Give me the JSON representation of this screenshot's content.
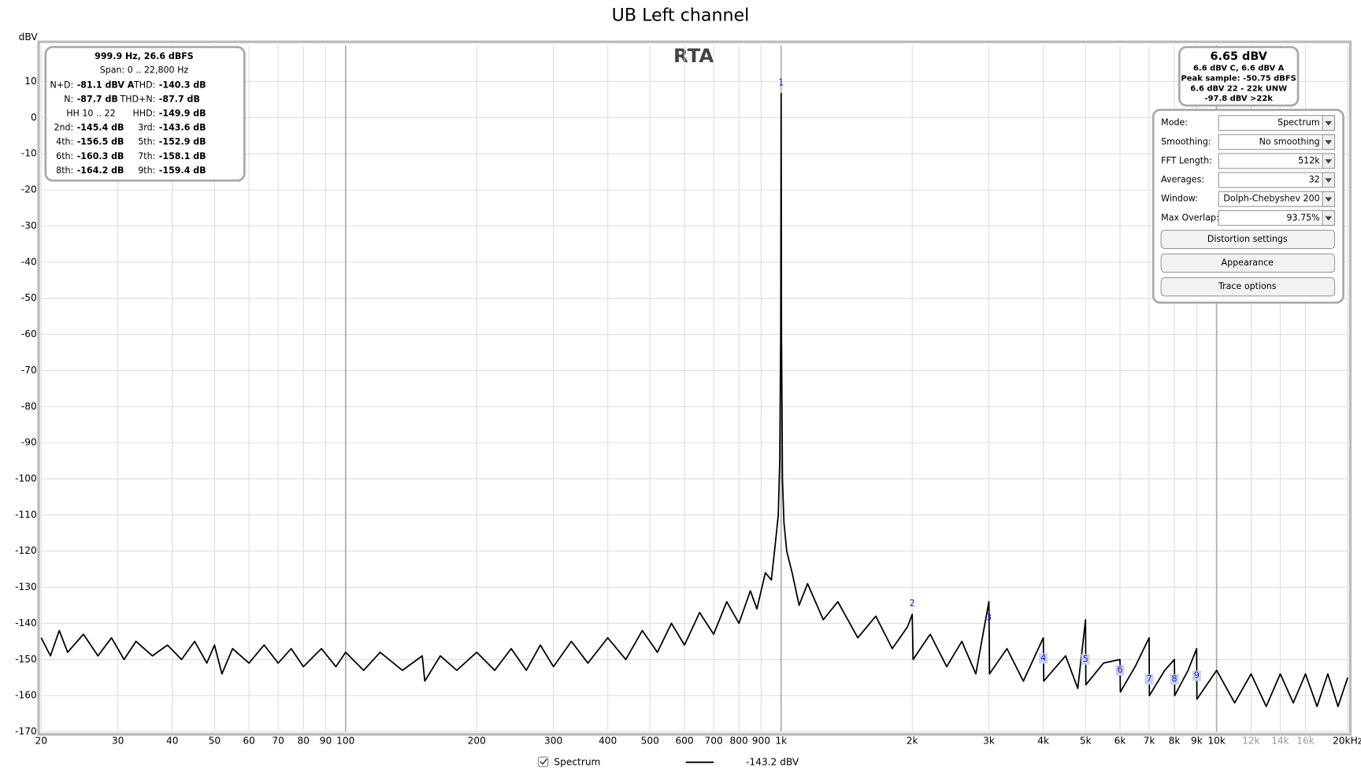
{
  "chart_data": {
    "type": "line",
    "title": "UB Left channel",
    "plot_label": "RTA",
    "y_unit": "dBV",
    "xscale": "log",
    "grid": true,
    "xlim": [
      20,
      20000
    ],
    "ylim": [
      -170,
      20
    ],
    "xticks": [
      20,
      30,
      40,
      50,
      60,
      70,
      80,
      90,
      100,
      200,
      300,
      400,
      500,
      600,
      700,
      800,
      900,
      {
        "value": 1000,
        "label": "1k"
      },
      {
        "value": 2000,
        "label": "2k"
      },
      {
        "value": 3000,
        "label": "3k"
      },
      {
        "value": 4000,
        "label": "4k"
      },
      {
        "value": 5000,
        "label": "5k"
      },
      {
        "value": 6000,
        "label": "6k"
      },
      {
        "value": 7000,
        "label": "7k"
      },
      {
        "value": 8000,
        "label": "8k"
      },
      {
        "value": 9000,
        "label": "9k"
      },
      {
        "value": 10000,
        "label": "10k"
      },
      {
        "value": 12000,
        "label": "12k",
        "color": "#999999"
      },
      {
        "value": 14000,
        "label": "14k",
        "color": "#999999"
      },
      {
        "value": 16000,
        "label": "16k",
        "color": "#999999"
      },
      {
        "value": 20000,
        "label": "20kHz"
      }
    ],
    "yticks": [
      -170,
      -160,
      -150,
      -140,
      -130,
      -120,
      -110,
      -100,
      -90,
      -80,
      -70,
      -60,
      -50,
      -40,
      -30,
      -20,
      -10,
      0,
      10
    ],
    "x": [
      20,
      21,
      22,
      23,
      25,
      27,
      29,
      31,
      33,
      36,
      39,
      42,
      45,
      48,
      50,
      52,
      55,
      60,
      65,
      70,
      75,
      80,
      88,
      95,
      100,
      110,
      120,
      135,
      150,
      152,
      165,
      180,
      200,
      220,
      240,
      260,
      280,
      300,
      330,
      360,
      400,
      440,
      480,
      520,
      560,
      600,
      650,
      700,
      750,
      800,
      850,
      880,
      920,
      950,
      970,
      985,
      993,
      998,
      1000,
      1002,
      1007,
      1015,
      1030,
      1060,
      1100,
      1150,
      1250,
      1350,
      1500,
      1650,
      1800,
      1950,
      2000,
      2010,
      2200,
      2400,
      2600,
      2800,
      3000,
      3010,
      3300,
      3600,
      4000,
      4010,
      4500,
      4800,
      5000,
      5010,
      5500,
      6000,
      6010,
      6500,
      7000,
      7010,
      7600,
      8000,
      8010,
      8600,
      9000,
      9010,
      10000,
      11000,
      12000,
      13000,
      14000,
      15000,
      16000,
      17000,
      18000,
      19000,
      20000
    ],
    "series": [
      {
        "name": "Spectrum",
        "color": "#000000",
        "legend_value": "-143.2 dBV",
        "values": [
          -144,
          -149,
          -142,
          -148,
          -143,
          -149,
          -144,
          -150,
          -145,
          -149,
          -146,
          -150,
          -145,
          -151,
          -146,
          -154,
          -147,
          -151,
          -146,
          -151,
          -147,
          -152,
          -147,
          -152,
          -148,
          -153,
          -148,
          -153,
          -149,
          -156,
          -149,
          -153,
          -148,
          -153,
          -147,
          -153,
          -146,
          -152,
          -145,
          -151,
          -144,
          -150,
          -142,
          -148,
          -140,
          -146,
          -137,
          -143,
          -134,
          -140,
          -131,
          -136,
          -126,
          -128,
          -118,
          -110,
          -95,
          -60,
          6.65,
          -60,
          -100,
          -112,
          -120,
          -126,
          -135,
          -129,
          -139,
          -134,
          -144,
          -138,
          -147,
          -141,
          -137.5,
          -150,
          -143,
          -152,
          -145,
          -154,
          -134,
          -154,
          -147,
          -156,
          -144,
          -156,
          -149,
          -158,
          -139,
          -157,
          -151,
          -150,
          -159,
          -152,
          -144,
          -160,
          -153,
          -150,
          -160,
          -153,
          -147,
          -161,
          -153,
          -162,
          -154,
          -163,
          -154,
          -162,
          -154,
          -163,
          -154,
          -163,
          -155
        ]
      }
    ],
    "markers": [
      {
        "label": "1",
        "x": 1000,
        "y": 9.5,
        "boxed": false
      },
      {
        "label": "2",
        "x": 2000,
        "y": -134.6,
        "boxed": false
      },
      {
        "label": "3",
        "x": 3000,
        "y": -138.5,
        "boxed": false
      },
      {
        "label": "4",
        "x": 4000,
        "y": -149.7,
        "boxed": true
      },
      {
        "label": "5",
        "x": 5000,
        "y": -150,
        "boxed": true
      },
      {
        "label": "6",
        "x": 6000,
        "y": -153,
        "boxed": true
      },
      {
        "label": "7",
        "x": 7000,
        "y": -155.5,
        "boxed": true
      },
      {
        "label": "8",
        "x": 8000,
        "y": -155.5,
        "boxed": true
      },
      {
        "label": "9",
        "x": 9000,
        "y": -154.5,
        "boxed": true
      }
    ]
  },
  "info_panel": {
    "headline": "999.9 Hz, 26.6 dBFS",
    "span": "Span: 0 .. 22,800 Hz",
    "rows": [
      [
        {
          "label": "N+D:",
          "value": "-81.1 dBV A"
        },
        {
          "label": "THD:",
          "value": "-140.3 dB"
        }
      ],
      [
        {
          "label": "N:",
          "value": "-87.7 dB"
        },
        {
          "label": "THD+N:",
          "value": "-87.7 dB"
        }
      ],
      [
        {
          "label": "HH 10 .. 22"
        },
        {
          "label": "HHD:",
          "value": "-149.9 dB"
        }
      ],
      [
        {
          "label": "2nd:",
          "value": "-145.4 dB"
        },
        {
          "label": "3rd:",
          "value": "-143.6 dB"
        }
      ],
      [
        {
          "label": "4th:",
          "value": "-156.5 dB"
        },
        {
          "label": "5th:",
          "value": "-152.9 dB"
        }
      ],
      [
        {
          "label": "6th:",
          "value": "-160.3 dB"
        },
        {
          "label": "7th:",
          "value": "-158.1 dB"
        }
      ],
      [
        {
          "label": "8th:",
          "value": "-164.2 dB"
        },
        {
          "label": "9th:",
          "value": "-159.4 dB"
        }
      ]
    ]
  },
  "level_panel": {
    "headline": "6.65 dBV",
    "lines": [
      "6.6 dBV C, 6.6 dBV A",
      "Peak sample: -50.75 dBFS",
      "6.6 dBV 22 - 22k UNW",
      "-97.8 dBV >22k"
    ]
  },
  "controls": {
    "fields": [
      {
        "label": "Mode:",
        "value": "Spectrum"
      },
      {
        "label": "Smoothing:",
        "value": "No  smoothing"
      },
      {
        "label": "FFT Length:",
        "value": "512k"
      },
      {
        "label": "Averages:",
        "value": "32"
      },
      {
        "label": "Window:",
        "value": "Dolph-Chebyshev 200"
      },
      {
        "label": "Max Overlap:",
        "value": "93.75%"
      }
    ],
    "buttons": [
      "Distortion settings",
      "Appearance",
      "Trace options"
    ]
  }
}
